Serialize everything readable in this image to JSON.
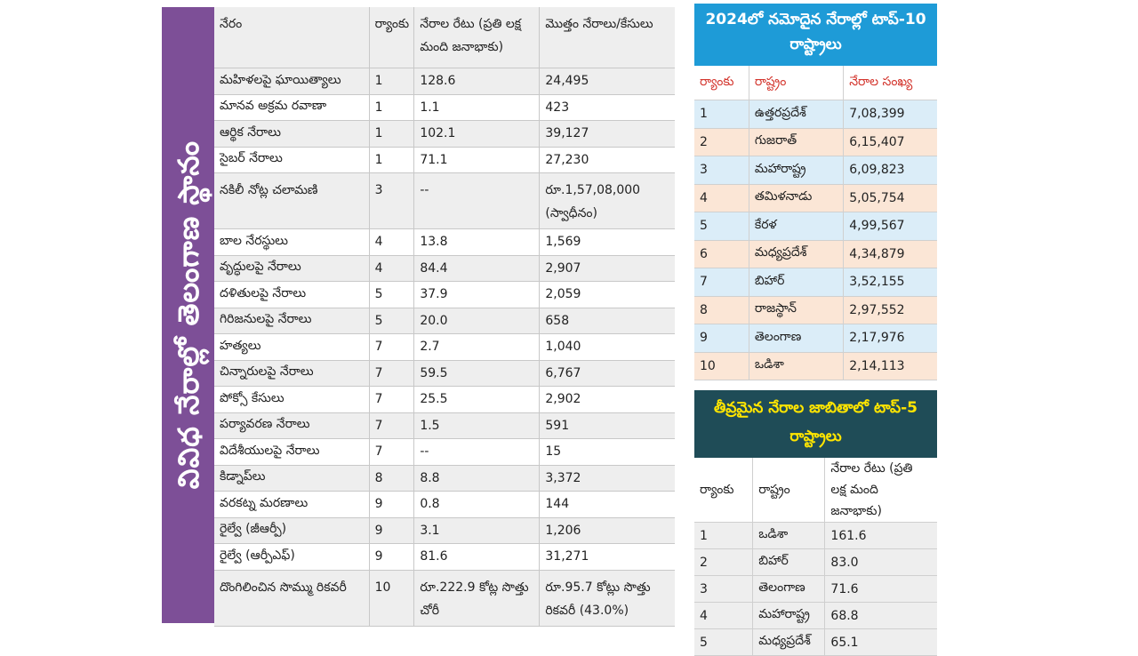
{
  "side_banner": "వివిధ నేరాల్లో తెలంగాణ స్థానం",
  "main_table": {
    "headers": [
      "నేరం",
      "ర్యాంకు",
      "నేరాల రేటు (ప్రతి లక్ష మంది జనాభాకు)",
      "మొత్తం నేరాలు/కేసులు"
    ],
    "rows": [
      [
        "మహిళలపై ఘాయిత్యాలు",
        "1",
        "128.6",
        "24,495"
      ],
      [
        "మానవ అక్రమ రవాణా",
        "1",
        "1.1",
        "423"
      ],
      [
        "ఆర్థిక నేరాలు",
        "1",
        "102.1",
        "39,127"
      ],
      [
        "సైబర్ నేరాలు",
        "1",
        "71.1",
        "27,230"
      ],
      [
        "నకిలీ నోట్ల చలామణి",
        "3",
        "--",
        "రూ.1,57,08,000 (స్వాధీనం)"
      ],
      [
        "బాల నేరస్థులు",
        "4",
        "13.8",
        "1,569"
      ],
      [
        "వృద్ధులపై నేరాలు",
        "4",
        "84.4",
        "2,907"
      ],
      [
        "దళితులపై నేరాలు",
        "5",
        "37.9",
        "2,059"
      ],
      [
        "గిరిజనులపై నేరాలు",
        "5",
        "20.0",
        "658"
      ],
      [
        "హత్యలు",
        "7",
        "2.7",
        "1,040"
      ],
      [
        "చిన్నారులపై నేరాలు",
        "7",
        "59.5",
        "6,767"
      ],
      [
        "పోక్సో కేసులు",
        "7",
        "25.5",
        "2,902"
      ],
      [
        "పర్యావరణ నేరాలు",
        "7",
        "1.5",
        "591"
      ],
      [
        "విదేశీయులపై నేరాలు",
        "7",
        "--",
        "15"
      ],
      [
        "కిడ్నాప్‌లు",
        "8",
        "8.8",
        "3,372"
      ],
      [
        "వరకట్న మరణాలు",
        "9",
        "0.8",
        "144"
      ],
      [
        "రైల్వే (జీఆర్పీ)",
        "9",
        "3.1",
        "1,206"
      ],
      [
        "రైల్వే (ఆర్పీఎఫ్)",
        "9",
        "81.6",
        "31,271"
      ],
      [
        "దొంగిలించిన సొమ్ము రికవరీ",
        "10",
        "రూ.222.9 కోట్ల సొత్తు చోరీ",
        "రూ.95.7 కోట్లు సొత్తు రికవరీ (43.0%)"
      ]
    ]
  },
  "top_states": {
    "title": "2024లో నమోదైన నేరాల్లో టాప్-10 రాష్ట్రాలు",
    "headers": [
      "ర్యాంకు",
      "రాష్ట్రం",
      "నేరాల సంఖ్య"
    ],
    "rows": [
      [
        "1",
        "ఉత్తరప్రదేశ్",
        "7,08,399"
      ],
      [
        "2",
        "గుజరాత్",
        "6,15,407"
      ],
      [
        "3",
        "మహారాష్ట్ర",
        "6,09,823"
      ],
      [
        "4",
        "తమిళనాడు",
        "5,05,754"
      ],
      [
        "5",
        "కేరళ",
        "4,99,567"
      ],
      [
        "6",
        "మధ్యప్రదేశ్",
        "4,34,879"
      ],
      [
        "7",
        "బిహార్",
        "3,52,155"
      ],
      [
        "8",
        "రాజస్థాన్",
        "2,97,552"
      ],
      [
        "9",
        "తెలంగాణ",
        "2,17,976"
      ],
      [
        "10",
        "ఒడిశా",
        "2,14,113"
      ]
    ]
  },
  "serious_crimes": {
    "title": "తీవ్రమైన నేరాల జాబితాలో టాప్-5 రాష్ట్రాలు",
    "headers": [
      "ర్యాంకు",
      "రాష్ట్రం",
      "నేరాల రేటు (ప్రతి లక్ష మంది జనాభాకు)"
    ],
    "rows": [
      [
        "1",
        "ఒడిశా",
        "161.6"
      ],
      [
        "2",
        "బిహార్",
        "83.0"
      ],
      [
        "3",
        "తెలంగాణ",
        "71.6"
      ],
      [
        "4",
        "మహారాష్ట్ర",
        "68.8"
      ],
      [
        "5",
        "మధ్యప్రదేశ్",
        "65.1"
      ]
    ]
  },
  "colors": {
    "banner": "#7d4f97",
    "blue_title": "#1e9bd7",
    "dark_title": "#1f4c57",
    "dark_title_text": "#ffe500",
    "header_red": "#d3342c"
  }
}
